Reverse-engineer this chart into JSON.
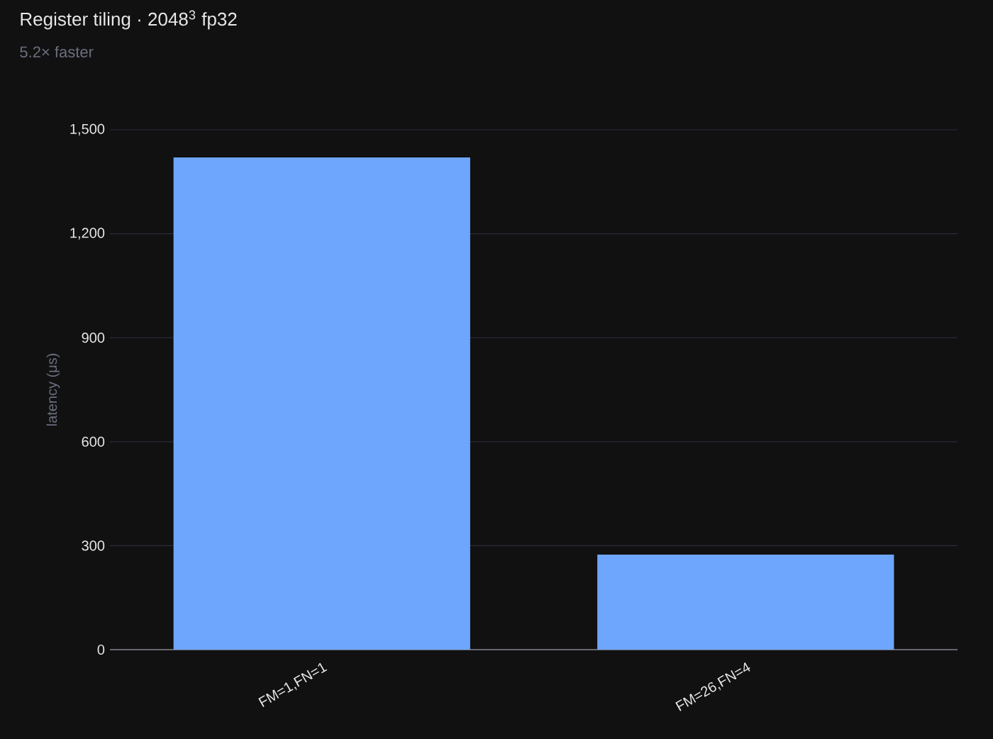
{
  "chart_data": {
    "type": "bar",
    "title": "Register tiling · 2048$^{3}$ fp32",
    "subtitle": "5.2× faster",
    "ylabel": "latency (μs)",
    "categories": [
      "FM=1,FN=1",
      "FM=26,FN=4"
    ],
    "values": [
      1420,
      274
    ],
    "color": "#6ea6fe",
    "ylim": [
      0,
      1500
    ],
    "yticks": [
      {
        "value": 0,
        "label": "0"
      },
      {
        "value": 300,
        "label": "300"
      },
      {
        "value": 600,
        "label": "600"
      },
      {
        "value": 900,
        "label": "900"
      },
      {
        "value": 1200,
        "label": "1,200"
      },
      {
        "value": 1500,
        "label": "1,500"
      }
    ],
    "grid": "y"
  }
}
